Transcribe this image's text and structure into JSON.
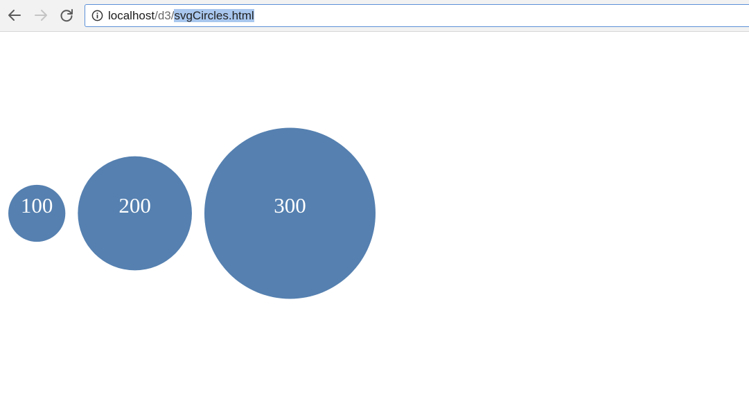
{
  "browser": {
    "url": {
      "host": "localhost",
      "path_prefix": "/d3/",
      "selected": "svgCircles.html"
    }
  },
  "chart_data": {
    "type": "scatter",
    "values": [
      100,
      200,
      300
    ],
    "labels": [
      "100",
      "200",
      "300"
    ],
    "circle_color": "#5580b0",
    "label_color": "#ffffff"
  },
  "icons": {
    "back": "arrow-left-icon",
    "forward": "arrow-right-icon",
    "reload": "reload-icon",
    "info": "info-icon"
  }
}
